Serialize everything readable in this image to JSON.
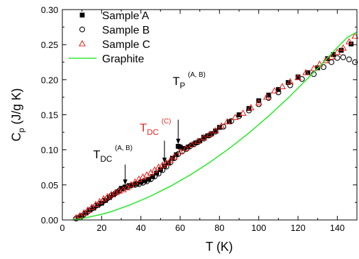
{
  "chart_data": {
    "type": "scatter",
    "xlabel": "T (K)",
    "ylabel": {
      "main": "C",
      "sub": "p",
      "rest": " (J/g K)"
    },
    "xlim": [
      0,
      150
    ],
    "ylim": [
      0,
      0.3
    ],
    "xticks": [
      0,
      20,
      40,
      60,
      80,
      100,
      120,
      140
    ],
    "yticks": [
      "0.00",
      "0.05",
      "0.10",
      "0.15",
      "0.20",
      "0.25",
      "0.30"
    ],
    "grid": false,
    "legend_position": "top-left",
    "series": [
      {
        "name": "Sample A",
        "marker": "filled-square",
        "color": "#000000",
        "points": [
          [
            8,
            0.003
          ],
          [
            10,
            0.006
          ],
          [
            12,
            0.01
          ],
          [
            14,
            0.014
          ],
          [
            16,
            0.017
          ],
          [
            18,
            0.021
          ],
          [
            20,
            0.024
          ],
          [
            22,
            0.028
          ],
          [
            24,
            0.032
          ],
          [
            26,
            0.036
          ],
          [
            28,
            0.04
          ],
          [
            30,
            0.045
          ],
          [
            32,
            0.047
          ],
          [
            34,
            0.049
          ],
          [
            36,
            0.05
          ],
          [
            38,
            0.052
          ],
          [
            40,
            0.054
          ],
          [
            42,
            0.056
          ],
          [
            44,
            0.058
          ],
          [
            46,
            0.062
          ],
          [
            48,
            0.067
          ],
          [
            50,
            0.072
          ],
          [
            52,
            0.077
          ],
          [
            54,
            0.081
          ],
          [
            56,
            0.088
          ],
          [
            58,
            0.093
          ],
          [
            59,
            0.105
          ],
          [
            60,
            0.104
          ],
          [
            62,
            0.102
          ],
          [
            64,
            0.104
          ],
          [
            66,
            0.107
          ],
          [
            68,
            0.11
          ],
          [
            70,
            0.113
          ],
          [
            72,
            0.118
          ],
          [
            74,
            0.12
          ],
          [
            76,
            0.123
          ],
          [
            78,
            0.127
          ],
          [
            80,
            0.132
          ],
          [
            85,
            0.14
          ],
          [
            90,
            0.15
          ],
          [
            95,
            0.159
          ],
          [
            100,
            0.17
          ],
          [
            105,
            0.178
          ],
          [
            110,
            0.186
          ],
          [
            115,
            0.196
          ],
          [
            120,
            0.204
          ],
          [
            125,
            0.21
          ],
          [
            130,
            0.217
          ],
          [
            135,
            0.23
          ],
          [
            138,
            0.236
          ],
          [
            142,
            0.242
          ],
          [
            147,
            0.251
          ]
        ]
      },
      {
        "name": "Sample B",
        "marker": "open-circle",
        "color": "#000000",
        "points": [
          [
            7,
            0.002
          ],
          [
            9,
            0.005
          ],
          [
            11,
            0.008
          ],
          [
            13,
            0.012
          ],
          [
            15,
            0.016
          ],
          [
            17,
            0.02
          ],
          [
            19,
            0.023
          ],
          [
            21,
            0.027
          ],
          [
            23,
            0.031
          ],
          [
            25,
            0.035
          ],
          [
            27,
            0.038
          ],
          [
            29,
            0.042
          ],
          [
            31,
            0.045
          ],
          [
            33,
            0.047
          ],
          [
            35,
            0.049
          ],
          [
            37,
            0.05
          ],
          [
            39,
            0.051
          ],
          [
            41,
            0.053
          ],
          [
            43,
            0.055
          ],
          [
            45,
            0.058
          ],
          [
            47,
            0.062
          ],
          [
            49,
            0.066
          ],
          [
            51,
            0.071
          ],
          [
            53,
            0.076
          ],
          [
            55,
            0.082
          ],
          [
            57,
            0.088
          ],
          [
            59,
            0.094
          ],
          [
            61,
            0.098
          ],
          [
            63,
            0.101
          ],
          [
            65,
            0.105
          ],
          [
            67,
            0.108
          ],
          [
            69,
            0.111
          ],
          [
            72,
            0.116
          ],
          [
            75,
            0.121
          ],
          [
            78,
            0.126
          ],
          [
            82,
            0.133
          ],
          [
            86,
            0.141
          ],
          [
            90,
            0.148
          ],
          [
            95,
            0.156
          ],
          [
            100,
            0.165
          ],
          [
            105,
            0.174
          ],
          [
            110,
            0.182
          ],
          [
            116,
            0.192
          ],
          [
            122,
            0.201
          ],
          [
            128,
            0.208
          ],
          [
            133,
            0.218
          ],
          [
            137,
            0.225
          ],
          [
            140,
            0.231
          ],
          [
            143,
            0.232
          ],
          [
            146,
            0.229
          ],
          [
            149,
            0.225
          ]
        ]
      },
      {
        "name": "Sample C",
        "marker": "open-triangle",
        "color": "#e8261f",
        "points": [
          [
            7,
            0.003
          ],
          [
            9,
            0.006
          ],
          [
            11,
            0.01
          ],
          [
            13,
            0.014
          ],
          [
            15,
            0.018
          ],
          [
            17,
            0.022
          ],
          [
            19,
            0.026
          ],
          [
            21,
            0.03
          ],
          [
            23,
            0.033
          ],
          [
            25,
            0.036
          ],
          [
            27,
            0.039
          ],
          [
            29,
            0.041
          ],
          [
            31,
            0.043
          ],
          [
            33,
            0.046
          ],
          [
            35,
            0.05
          ],
          [
            37,
            0.054
          ],
          [
            39,
            0.058
          ],
          [
            41,
            0.061
          ],
          [
            43,
            0.064
          ],
          [
            45,
            0.067
          ],
          [
            47,
            0.071
          ],
          [
            49,
            0.075
          ],
          [
            51,
            0.078
          ],
          [
            53,
            0.081
          ],
          [
            55,
            0.085
          ],
          [
            57,
            0.09
          ],
          [
            60,
            0.097
          ],
          [
            63,
            0.102
          ],
          [
            66,
            0.107
          ],
          [
            69,
            0.112
          ],
          [
            72,
            0.117
          ],
          [
            75,
            0.122
          ],
          [
            78,
            0.127
          ],
          [
            81,
            0.134
          ],
          [
            84,
            0.14
          ],
          [
            88,
            0.146
          ],
          [
            92,
            0.152
          ],
          [
            96,
            0.16
          ],
          [
            100,
            0.167
          ],
          [
            104,
            0.175
          ],
          [
            108,
            0.184
          ],
          [
            112,
            0.19
          ],
          [
            116,
            0.197
          ],
          [
            120,
            0.203
          ],
          [
            124,
            0.21
          ],
          [
            128,
            0.216
          ],
          [
            131,
            0.222
          ],
          [
            134,
            0.227
          ],
          [
            137,
            0.232
          ],
          [
            140,
            0.239
          ],
          [
            143,
            0.245
          ],
          [
            146,
            0.254
          ],
          [
            149,
            0.262
          ]
        ]
      },
      {
        "name": "Graphite",
        "marker": "line",
        "color": "#2ee82e",
        "points": [
          [
            5,
            0.0
          ],
          [
            10,
            0.002
          ],
          [
            15,
            0.005
          ],
          [
            20,
            0.008
          ],
          [
            25,
            0.012
          ],
          [
            30,
            0.017
          ],
          [
            35,
            0.022
          ],
          [
            40,
            0.028
          ],
          [
            45,
            0.034
          ],
          [
            50,
            0.041
          ],
          [
            55,
            0.048
          ],
          [
            60,
            0.056
          ],
          [
            65,
            0.064
          ],
          [
            70,
            0.073
          ],
          [
            75,
            0.082
          ],
          [
            80,
            0.092
          ],
          [
            85,
            0.102
          ],
          [
            90,
            0.113
          ],
          [
            95,
            0.124
          ],
          [
            100,
            0.136
          ],
          [
            105,
            0.148
          ],
          [
            110,
            0.161
          ],
          [
            115,
            0.174
          ],
          [
            120,
            0.188
          ],
          [
            125,
            0.202
          ],
          [
            130,
            0.216
          ],
          [
            135,
            0.231
          ],
          [
            140,
            0.246
          ],
          [
            145,
            0.26
          ],
          [
            150,
            0.268
          ]
        ]
      }
    ],
    "annotations": [
      {
        "main": "T",
        "sub": "DC",
        "sup": "(A, B)",
        "color": "#000000",
        "arrow_from": [
          32,
          0.079
        ],
        "arrow_to": [
          32,
          0.05
        ]
      },
      {
        "main": "T",
        "sub": "DC",
        "sup": "(C)",
        "color": "#e8261f",
        "arrow_from": [
          52,
          0.113
        ],
        "arrow_to": [
          52,
          0.081
        ]
      },
      {
        "main": "T",
        "sub": "P",
        "sup": "(A, B)",
        "color": "#000000",
        "arrow_from": [
          59,
          0.143
        ],
        "arrow_to": [
          59,
          0.108
        ]
      }
    ]
  }
}
